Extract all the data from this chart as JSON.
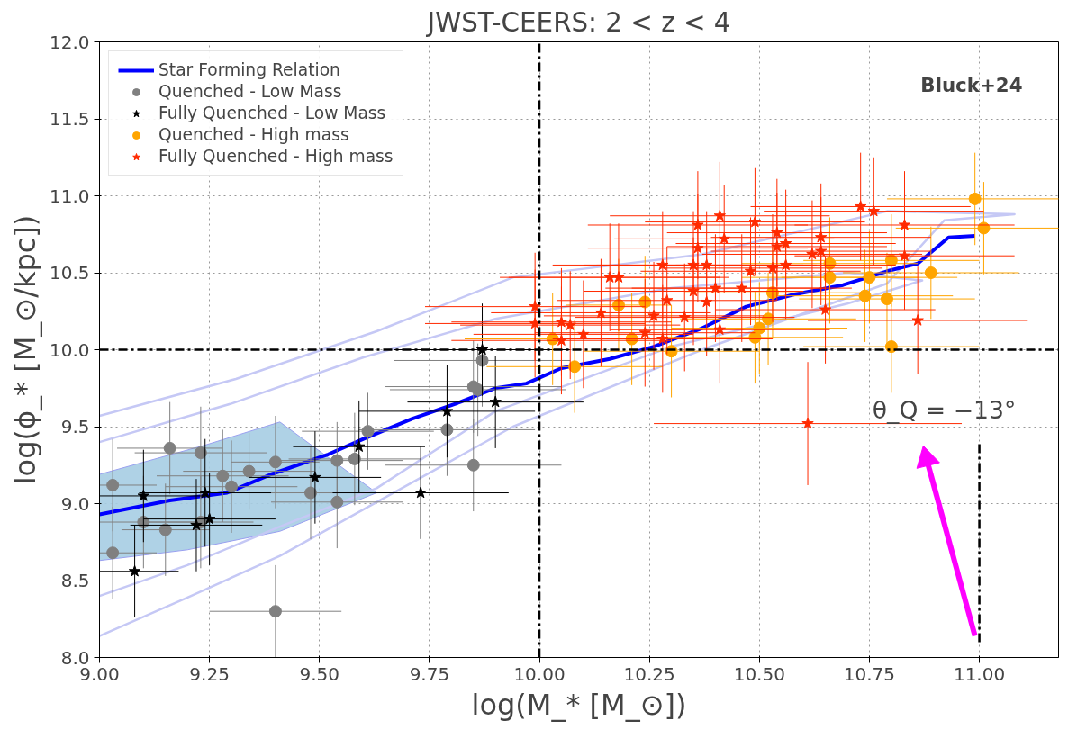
{
  "chart_data": {
    "type": "scatter",
    "title": "JWST-CEERS: 2 < z < 4",
    "xlabel": "log(M_* [M_⊙])",
    "ylabel": "log(ϕ_* [M_⊙/kpc])",
    "xlim": [
      9.0,
      11.18
    ],
    "ylim": [
      8.0,
      12.0
    ],
    "xticks": [
      {
        "value": 9.0,
        "label": "9.00"
      },
      9.25,
      {
        "value": 9.5,
        "label": "9.50"
      },
      9.75,
      {
        "value": 10.0,
        "label": "10.00"
      },
      10.25,
      {
        "value": 10.5,
        "label": "10.50"
      },
      10.75,
      {
        "value": 11.0,
        "label": "11.00"
      }
    ],
    "yticks": [
      {
        "value": 8.0,
        "label": "8.0"
      },
      8.5,
      {
        "value": 9.0,
        "label": "9.0"
      },
      9.5,
      {
        "value": 10.0,
        "label": "10.0"
      },
      10.5,
      {
        "value": 11.0,
        "label": "11.0"
      },
      11.5,
      {
        "value": 12.0,
        "label": "12.0"
      }
    ],
    "grid": true,
    "legend": "top left",
    "annotations": [
      "Bluck+24",
      {
        "text": "θ_Q = −13°",
        "x": 10.92,
        "y": 9.52
      }
    ],
    "series": [
      {
        "type": "area",
        "color": "#a6cde3",
        "x": [
          9.0,
          9.24,
          9.41,
          9.63,
          9.41,
          9.2,
          9.0
        ],
        "values": [
          9.19,
          9.38,
          9.53,
          9.07,
          8.82,
          8.7,
          8.63
        ]
      },
      {
        "type": "line",
        "color": "#c5c8f5",
        "x": [
          9.0,
          9.2,
          9.41,
          9.63,
          9.94,
          10.37,
          10.79,
          10.92,
          11.08,
          10.79,
          10.37,
          9.94,
          9.63,
          9.31,
          9.0
        ],
        "values": [
          8.14,
          8.39,
          8.66,
          9.01,
          9.5,
          10.0,
          10.43,
          10.84,
          10.88,
          10.9,
          10.62,
          10.47,
          10.12,
          9.81,
          9.57
        ]
      },
      {
        "type": "line",
        "color": "#c5c8f5",
        "x": [
          9.0,
          9.2,
          9.41,
          9.63,
          9.9,
          10.3,
          10.7,
          10.87,
          10.7,
          10.3,
          9.9,
          9.6,
          9.3,
          9.0
        ],
        "values": [
          8.4,
          8.6,
          8.85,
          9.1,
          9.6,
          10.02,
          10.3,
          10.45,
          10.5,
          10.4,
          10.2,
          9.95,
          9.65,
          9.4
        ]
      },
      {
        "type": "line",
        "color": "#0000ff",
        "name": "Star Forming Relation",
        "x": [
          9.0,
          9.16,
          9.29,
          9.39,
          9.52,
          9.6,
          9.71,
          9.82,
          9.9,
          9.97,
          10.05,
          10.16,
          10.26,
          10.37,
          10.47,
          10.58,
          10.69,
          10.79,
          10.86,
          10.93,
          10.99
        ],
        "values": [
          8.93,
          9.02,
          9.07,
          9.19,
          9.32,
          9.42,
          9.55,
          9.66,
          9.75,
          9.78,
          9.88,
          9.94,
          10.02,
          10.14,
          10.28,
          10.36,
          10.42,
          10.51,
          10.56,
          10.73,
          10.74
        ]
      },
      {
        "marker": "circle",
        "color": "#808080",
        "name": "Quenched - Low Mass",
        "x": [
          9.03,
          9.03,
          9.16,
          9.23,
          9.28,
          9.3,
          9.34,
          9.4,
          9.1,
          9.15,
          9.23,
          9.48,
          9.54,
          9.54,
          9.58,
          9.61,
          9.4,
          9.79,
          9.85,
          9.85,
          9.86,
          9.87
        ],
        "values": [
          9.12,
          8.68,
          9.36,
          9.33,
          9.18,
          9.11,
          9.21,
          9.27,
          8.88,
          8.83,
          8.88,
          9.07,
          9.01,
          9.28,
          9.29,
          9.47,
          8.3,
          9.48,
          9.25,
          9.76,
          9.74,
          9.93
        ],
        "xerrors": [
          0.1,
          0.1,
          0.12,
          0.15,
          0.15,
          0.15,
          0.15,
          0.1,
          0.15,
          0.1,
          0.12,
          0.15,
          0.15,
          0.15,
          0.15,
          0.15,
          0.15,
          0.2,
          0.2,
          0.2,
          0.2,
          0.2
        ],
        "errors": [
          0.3,
          0.3,
          0.3,
          0.3,
          0.3,
          0.3,
          0.25,
          0.3,
          0.3,
          0.3,
          0.3,
          0.3,
          0.3,
          0.25,
          0.3,
          0.25,
          0.3,
          0.3,
          0.3,
          0.3,
          0.3,
          0.3
        ]
      },
      {
        "marker": "star",
        "color": "#000000",
        "name": "Fully Quenched - Low Mass",
        "x": [
          9.1,
          9.08,
          9.22,
          9.24,
          9.25,
          9.49,
          9.59,
          9.73,
          9.79,
          9.9,
          9.87
        ],
        "values": [
          9.05,
          8.56,
          8.86,
          9.07,
          8.9,
          9.17,
          9.37,
          9.07,
          9.6,
          9.66,
          10.0
        ],
        "xerrors": [
          0.15,
          0.1,
          0.15,
          0.15,
          0.15,
          0.15,
          0.15,
          0.2,
          0.2,
          0.2,
          0.2
        ],
        "errors": [
          0.3,
          0.3,
          0.3,
          0.35,
          0.3,
          0.3,
          0.3,
          0.3,
          0.3,
          0.3,
          0.3
        ]
      },
      {
        "marker": "circle",
        "color": "#ffa500",
        "name": "Quenched - High mass",
        "x": [
          10.99,
          11.01,
          10.89,
          10.8,
          10.75,
          10.74,
          10.79,
          10.8,
          10.66,
          10.66,
          10.52,
          10.5,
          10.49,
          10.53,
          10.3,
          10.21,
          10.24,
          10.18,
          10.08,
          10.03
        ],
        "values": [
          10.98,
          10.79,
          10.5,
          10.58,
          10.47,
          10.35,
          10.33,
          10.02,
          10.47,
          10.56,
          10.2,
          10.14,
          10.08,
          10.37,
          9.99,
          10.07,
          10.31,
          10.29,
          9.89,
          10.07
        ],
        "xerrors": [
          0.2,
          0.2,
          0.2,
          0.2,
          0.2,
          0.2,
          0.2,
          0.2,
          0.2,
          0.2,
          0.2,
          0.2,
          0.2,
          0.2,
          0.2,
          0.2,
          0.2,
          0.12,
          0.2,
          0.2
        ],
        "errors": [
          0.3,
          0.3,
          0.3,
          0.3,
          0.3,
          0.3,
          0.3,
          0.3,
          0.3,
          0.3,
          0.3,
          0.3,
          0.3,
          0.3,
          0.3,
          0.3,
          0.3,
          0.3,
          0.3,
          0.3
        ]
      },
      {
        "marker": "star",
        "color": "#ff2a00",
        "name": "Fully Quenched - High mass",
        "x": [
          9.99,
          9.99,
          10.05,
          10.05,
          10.07,
          10.1,
          10.14,
          10.16,
          10.18,
          10.24,
          10.26,
          10.28,
          10.28,
          10.29,
          10.33,
          10.35,
          10.35,
          10.36,
          10.36,
          10.38,
          10.38,
          10.4,
          10.41,
          10.41,
          10.42,
          10.46,
          10.48,
          10.49,
          10.53,
          10.54,
          10.54,
          10.56,
          10.56,
          10.62,
          10.64,
          10.64,
          10.65,
          10.73,
          10.76,
          10.83,
          10.83,
          10.86,
          10.61
        ],
        "values": [
          10.28,
          10.17,
          10.06,
          10.18,
          10.16,
          10.1,
          10.24,
          10.47,
          10.47,
          10.11,
          10.22,
          10.55,
          10.07,
          10.32,
          10.21,
          10.38,
          10.55,
          10.66,
          10.81,
          10.55,
          10.31,
          10.4,
          10.13,
          10.87,
          10.72,
          10.4,
          10.51,
          10.83,
          10.53,
          10.76,
          10.67,
          10.69,
          10.55,
          10.62,
          10.73,
          10.64,
          10.26,
          10.93,
          10.9,
          10.81,
          10.61,
          10.19,
          9.52
        ],
        "xerrors": [
          0.25,
          0.25,
          0.25,
          0.25,
          0.25,
          0.25,
          0.25,
          0.25,
          0.25,
          0.25,
          0.25,
          0.25,
          0.25,
          0.25,
          0.25,
          0.25,
          0.25,
          0.25,
          0.25,
          0.25,
          0.25,
          0.25,
          0.25,
          0.25,
          0.25,
          0.25,
          0.25,
          0.25,
          0.25,
          0.25,
          0.25,
          0.25,
          0.25,
          0.25,
          0.25,
          0.25,
          0.25,
          0.25,
          0.25,
          0.25,
          0.25,
          0.25,
          0.35
        ],
        "errors": [
          0.35,
          0.35,
          0.35,
          0.35,
          0.35,
          0.35,
          0.35,
          0.35,
          0.35,
          0.35,
          0.35,
          0.35,
          0.35,
          0.35,
          0.35,
          0.35,
          0.35,
          0.35,
          0.35,
          0.35,
          0.35,
          0.35,
          0.35,
          0.35,
          0.35,
          0.35,
          0.35,
          0.35,
          0.35,
          0.35,
          0.35,
          0.35,
          0.35,
          0.35,
          0.35,
          0.35,
          0.35,
          0.35,
          0.35,
          0.35,
          0.35,
          0.35,
          0.4
        ]
      },
      {
        "type": "line",
        "color": "#000000",
        "line_style": "dashed",
        "x": [
          11.0,
          11.0
        ],
        "values": [
          8.1,
          9.4
        ]
      },
      {
        "type": "line",
        "color": "#000000",
        "line_style": "dashed",
        "x": [
          10.0,
          10.0
        ],
        "values": [
          8.0,
          12.0
        ]
      },
      {
        "type": "line",
        "color": "#000000",
        "line_style": "dashed",
        "x": [
          9.0,
          11.18
        ],
        "values": [
          10.0,
          10.0
        ]
      },
      {
        "type": "line",
        "marker": "triangle",
        "color": "#ff00ff",
        "x": [
          10.99,
          10.88
        ],
        "values": [
          8.14,
          9.29
        ]
      }
    ]
  }
}
